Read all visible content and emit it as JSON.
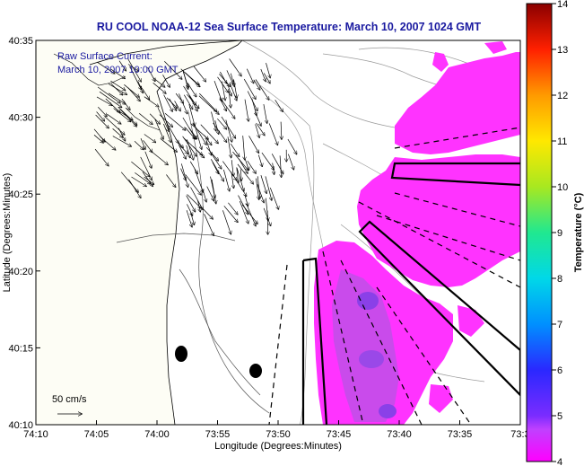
{
  "title": "RU COOL  NOAA-12  Sea Surface Temperature:  March 10, 2007 1024 GMT",
  "overlay": {
    "line1": "Raw Surface Current:",
    "line2": "March 10, 2007 10:00 GMT"
  },
  "axes": {
    "xlabel": "Longitude (Degrees:Minutes)",
    "ylabel": "Latitude (Degrees:Minutes)",
    "x_ticks": [
      "74:10",
      "74:05",
      "74:00",
      "73:55",
      "73:50",
      "73:45",
      "73:40",
      "73:35",
      "73:3"
    ],
    "y_ticks": [
      "40:35",
      "40:30",
      "40:25",
      "40:20",
      "40:15",
      "40:10"
    ]
  },
  "scale_label": "50 cm/s",
  "colorbar": {
    "title": "Temperature (°C)",
    "ticks": [
      "14",
      "13",
      "12",
      "11",
      "10",
      "9",
      "8",
      "7",
      "6",
      "5",
      "4"
    ],
    "min": 4,
    "max": 14
  },
  "colors": {
    "sst_patch": "#ff33ff",
    "sst_cool": "#b54ae0",
    "land": "#fdfdf5",
    "text_blue": "#1a1aa0"
  }
}
